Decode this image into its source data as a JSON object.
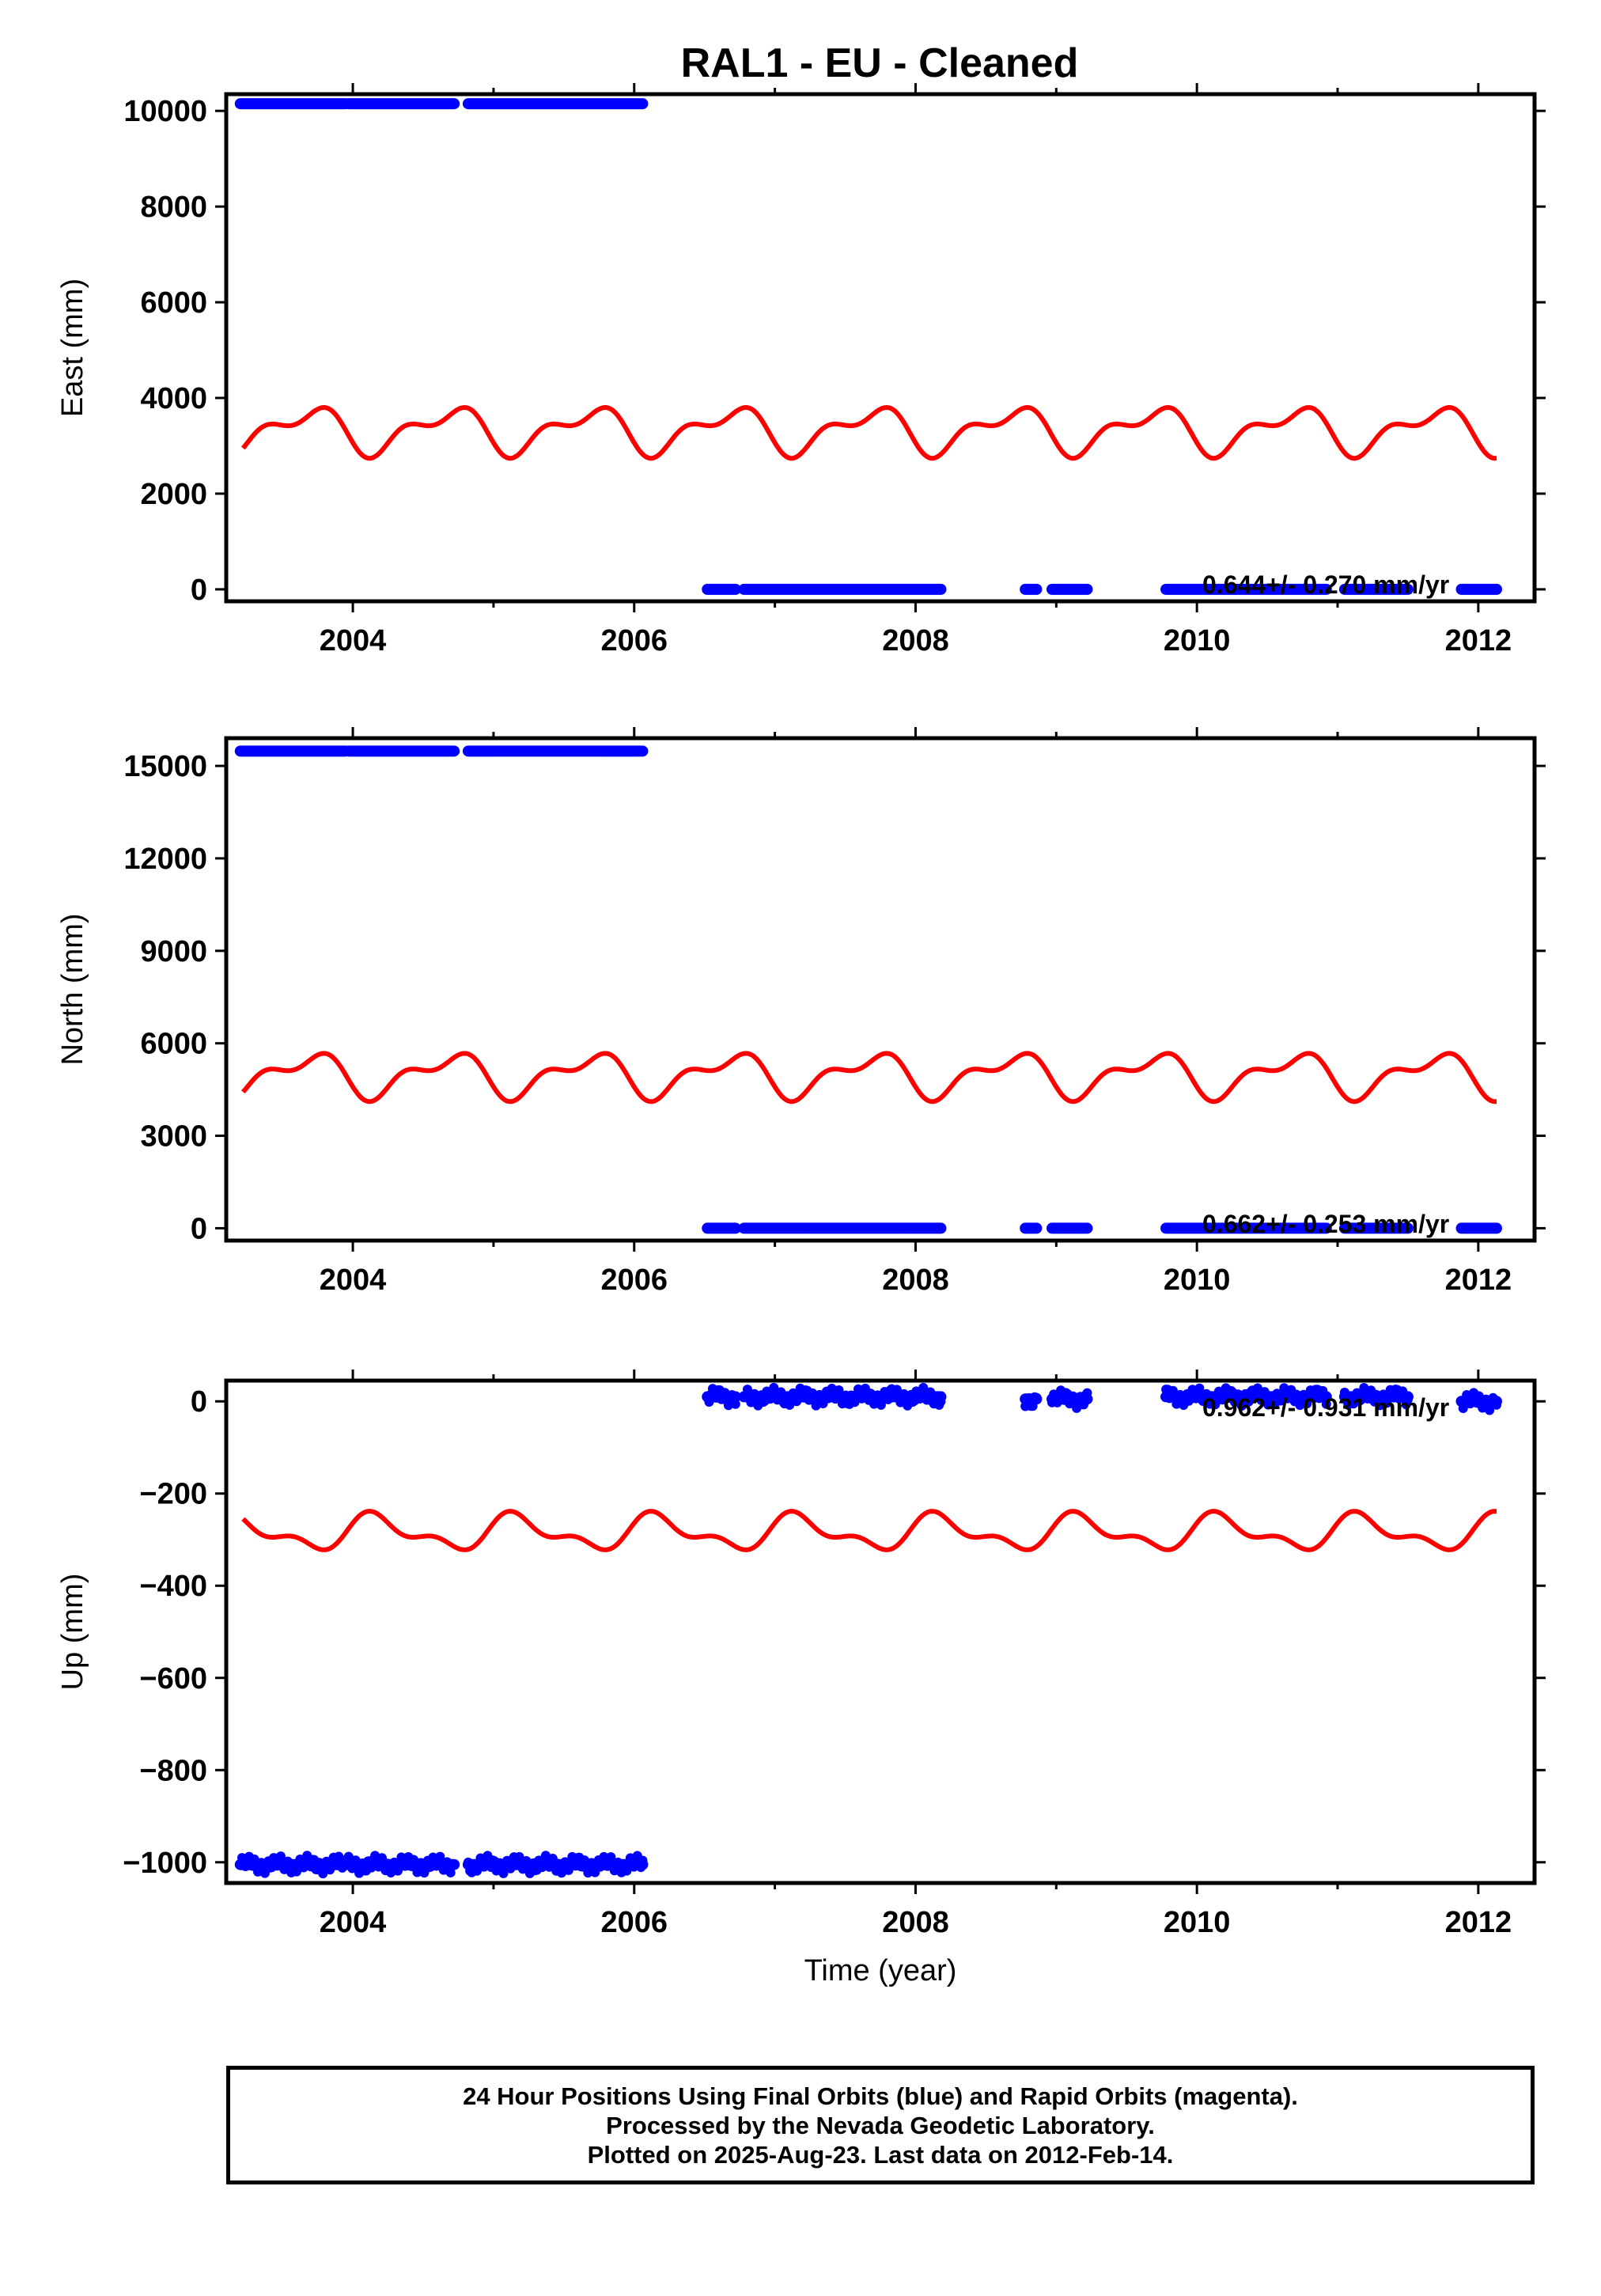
{
  "title": "RAL1  - EU - Cleaned",
  "footer": {
    "line1": "24 Hour Positions Using Final Orbits (blue) and Rapid Orbits (magenta).",
    "line2": "Processed by the Nevada Geodetic Laboratory.",
    "line3": "Plotted on 2025-Aug-23. Last data on 2012-Feb-14."
  },
  "colors": {
    "final_orbits": "#0000ff",
    "model": "#ff0000"
  },
  "chart_data": [
    {
      "type": "scatter",
      "ylabel": "East (mm)",
      "xlabel": "",
      "xlim": [
        2003.1,
        2012.4
      ],
      "ylim": [
        -250,
        10350
      ],
      "xticks": [
        2004,
        2006,
        2008,
        2010,
        2012
      ],
      "yticks": [
        0,
        2000,
        4000,
        6000,
        8000,
        10000
      ],
      "rate_text": "0.644+/- 0.270 mm/yr",
      "segments": [
        {
          "x": [
            2003.2,
            2003.95
          ],
          "y": 10150
        },
        {
          "x": [
            2003.97,
            2004.72
          ],
          "y": 10150
        },
        {
          "x": [
            2004.82,
            2006.06
          ],
          "y": 10150
        },
        {
          "x": [
            2006.52,
            2006.72
          ],
          "y": 0
        },
        {
          "x": [
            2006.78,
            2008.18
          ],
          "y": 0
        },
        {
          "x": [
            2008.78,
            2008.86
          ],
          "y": 0
        },
        {
          "x": [
            2008.97,
            2009.22
          ],
          "y": 0
        },
        {
          "x": [
            2009.78,
            2010.92
          ],
          "y": 0
        },
        {
          "x": [
            2011.05,
            2011.5
          ],
          "y": 0
        },
        {
          "x": [
            2011.88,
            2012.13
          ],
          "y": 0
        }
      ],
      "model": {
        "mean": 3330,
        "annual_amp": 380,
        "semiannual_amp": 380,
        "x_range": [
          2003.22,
          2012.13
        ]
      }
    },
    {
      "type": "scatter",
      "ylabel": "North (mm)",
      "xlabel": "",
      "xlim": [
        2003.1,
        2012.4
      ],
      "ylim": [
        -400,
        15900
      ],
      "xticks": [
        2004,
        2006,
        2008,
        2010,
        2012
      ],
      "yticks": [
        0,
        3000,
        6000,
        9000,
        12000,
        15000
      ],
      "rate_text": "0.662+/- 0.253 mm/yr",
      "segments": [
        {
          "x": [
            2003.2,
            2003.95
          ],
          "y": 15480
        },
        {
          "x": [
            2003.97,
            2004.72
          ],
          "y": 15480
        },
        {
          "x": [
            2004.82,
            2006.06
          ],
          "y": 15480
        },
        {
          "x": [
            2006.52,
            2006.72
          ],
          "y": 0
        },
        {
          "x": [
            2006.78,
            2008.18
          ],
          "y": 0
        },
        {
          "x": [
            2008.78,
            2008.86
          ],
          "y": 0
        },
        {
          "x": [
            2008.97,
            2009.22
          ],
          "y": 0
        },
        {
          "x": [
            2009.78,
            2010.92
          ],
          "y": 0
        },
        {
          "x": [
            2011.05,
            2011.5
          ],
          "y": 0
        },
        {
          "x": [
            2011.88,
            2012.13
          ],
          "y": 0
        }
      ],
      "model": {
        "mean": 4980,
        "annual_amp": 560,
        "semiannual_amp": 560,
        "x_range": [
          2003.22,
          2012.13
        ]
      }
    },
    {
      "type": "scatter",
      "ylabel": "Up (mm)",
      "xlabel": "Time (year)",
      "xlim": [
        2003.1,
        2012.4
      ],
      "ylim": [
        -1045,
        45
      ],
      "xticks": [
        2004,
        2006,
        2008,
        2010,
        2012
      ],
      "yticks": [
        0,
        -200,
        -400,
        -600,
        -800,
        -1000
      ],
      "rate_text": "0.962+/- 0.931 mm/yr",
      "segments": [
        {
          "x": [
            2003.2,
            2003.95
          ],
          "y": -1005
        },
        {
          "x": [
            2003.97,
            2004.72
          ],
          "y": -1005
        },
        {
          "x": [
            2004.82,
            2006.06
          ],
          "y": -1005
        },
        {
          "x": [
            2006.52,
            2006.72
          ],
          "y": 10
        },
        {
          "x": [
            2006.78,
            2008.18
          ],
          "y": 10
        },
        {
          "x": [
            2008.78,
            2008.86
          ],
          "y": 5
        },
        {
          "x": [
            2008.97,
            2009.22
          ],
          "y": 5
        },
        {
          "x": [
            2009.78,
            2010.92
          ],
          "y": 10
        },
        {
          "x": [
            2011.05,
            2011.5
          ],
          "y": 10
        },
        {
          "x": [
            2011.88,
            2012.13
          ],
          "y": 0
        }
      ],
      "model": {
        "mean": -285,
        "annual_amp": 30,
        "semiannual_amp": 30,
        "x_range": [
          2003.22,
          2012.13
        ],
        "sign": -1
      }
    }
  ]
}
